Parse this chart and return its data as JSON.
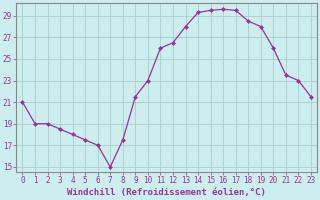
{
  "x": [
    0,
    1,
    2,
    3,
    4,
    5,
    6,
    7,
    8,
    9,
    10,
    11,
    12,
    13,
    14,
    15,
    16,
    17,
    18,
    19,
    20,
    21,
    22,
    23
  ],
  "y": [
    21,
    19,
    19,
    18.5,
    18,
    17.5,
    17,
    15,
    17.5,
    21.5,
    23,
    26,
    26.5,
    28,
    29.3,
    29.5,
    29.6,
    29.5,
    28.5,
    28,
    26,
    23.5,
    23,
    21.5
  ],
  "line_color": "#993399",
  "marker_color": "#993399",
  "bg_color": "#cceeee",
  "grid_color": "#aacccc",
  "xlabel": "Windchill (Refroidissement éolien,°C)",
  "xlabel_color": "#993399",
  "ylim": [
    14.5,
    30.2
  ],
  "xlim": [
    -0.5,
    23.5
  ],
  "yticks": [
    15,
    17,
    19,
    21,
    23,
    25,
    27,
    29
  ],
  "xticks": [
    0,
    1,
    2,
    3,
    4,
    5,
    6,
    7,
    8,
    9,
    10,
    11,
    12,
    13,
    14,
    15,
    16,
    17,
    18,
    19,
    20,
    21,
    22,
    23
  ],
  "font_color": "#993399",
  "tick_fontsize": 5.5,
  "xlabel_fontsize": 6.5
}
